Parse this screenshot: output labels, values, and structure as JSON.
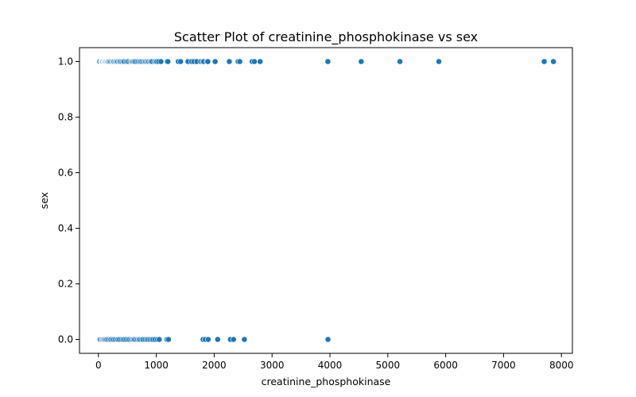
{
  "chart_data": {
    "type": "scatter",
    "title": "Scatter Plot of creatinine_phosphokinase vs sex",
    "xlabel": "creatinine_phosphokinase",
    "ylabel": "sex",
    "xlim": [
      -327,
      8189
    ],
    "ylim": [
      -0.05,
      1.05
    ],
    "xticks": [
      0,
      1000,
      2000,
      3000,
      4000,
      5000,
      6000,
      7000,
      8000
    ],
    "xtick_labels": [
      "0",
      "1000",
      "2000",
      "3000",
      "4000",
      "5000",
      "6000",
      "7000",
      "8000"
    ],
    "yticks": [
      0.0,
      0.2,
      0.4,
      0.6,
      0.8,
      1.0
    ],
    "ytick_labels": [
      "0.0",
      "0.2",
      "0.4",
      "0.6",
      "0.8",
      "1.0"
    ],
    "grid": false,
    "legend": "none",
    "marker_color": "#1f77b4",
    "series": [
      {
        "values_y": 1,
        "x": [
          23,
          47,
          52,
          59,
          66,
          72,
          80,
          95,
          102,
          111,
          118,
          125,
          129,
          143,
          150,
          160,
          168,
          180,
          196,
          212,
          231,
          249,
          258,
          270,
          291,
          305,
          320,
          335,
          358,
          370,
          390,
          412,
          432,
          446,
          478,
          500,
          520,
          554,
          573,
          582,
          600,
          615,
          632,
          660,
          688,
          710,
          730,
          751,
          776,
          800,
          815,
          835,
          855,
          872,
          898,
          910,
          930,
          970,
          990,
          1010,
          1040,
          1080,
          1185,
          1200,
          1380,
          1420,
          1548,
          1610,
          1650,
          1700,
          1767,
          1800,
          1820,
          1876,
          1890,
          2017,
          2261,
          2413,
          2442,
          2656,
          2695,
          2794,
          3964,
          4540,
          5209,
          5882,
          7702,
          7861
        ]
      },
      {
        "values_y": 0,
        "x": [
          30,
          55,
          68,
          84,
          97,
          112,
          130,
          146,
          170,
          198,
          215,
          240,
          265,
          290,
          320,
          340,
          365,
          400,
          425,
          450,
          482,
          514,
          540,
          570,
          590,
          610,
          625,
          655,
          680,
          700,
          720,
          750,
          770,
          805,
          835,
          860,
          890,
          920,
          945,
          980,
          1020,
          1051,
          1185,
          1211,
          1808,
          1846,
          1896,
          2060,
          2281,
          2334,
          2522,
          3966
        ]
      }
    ]
  }
}
